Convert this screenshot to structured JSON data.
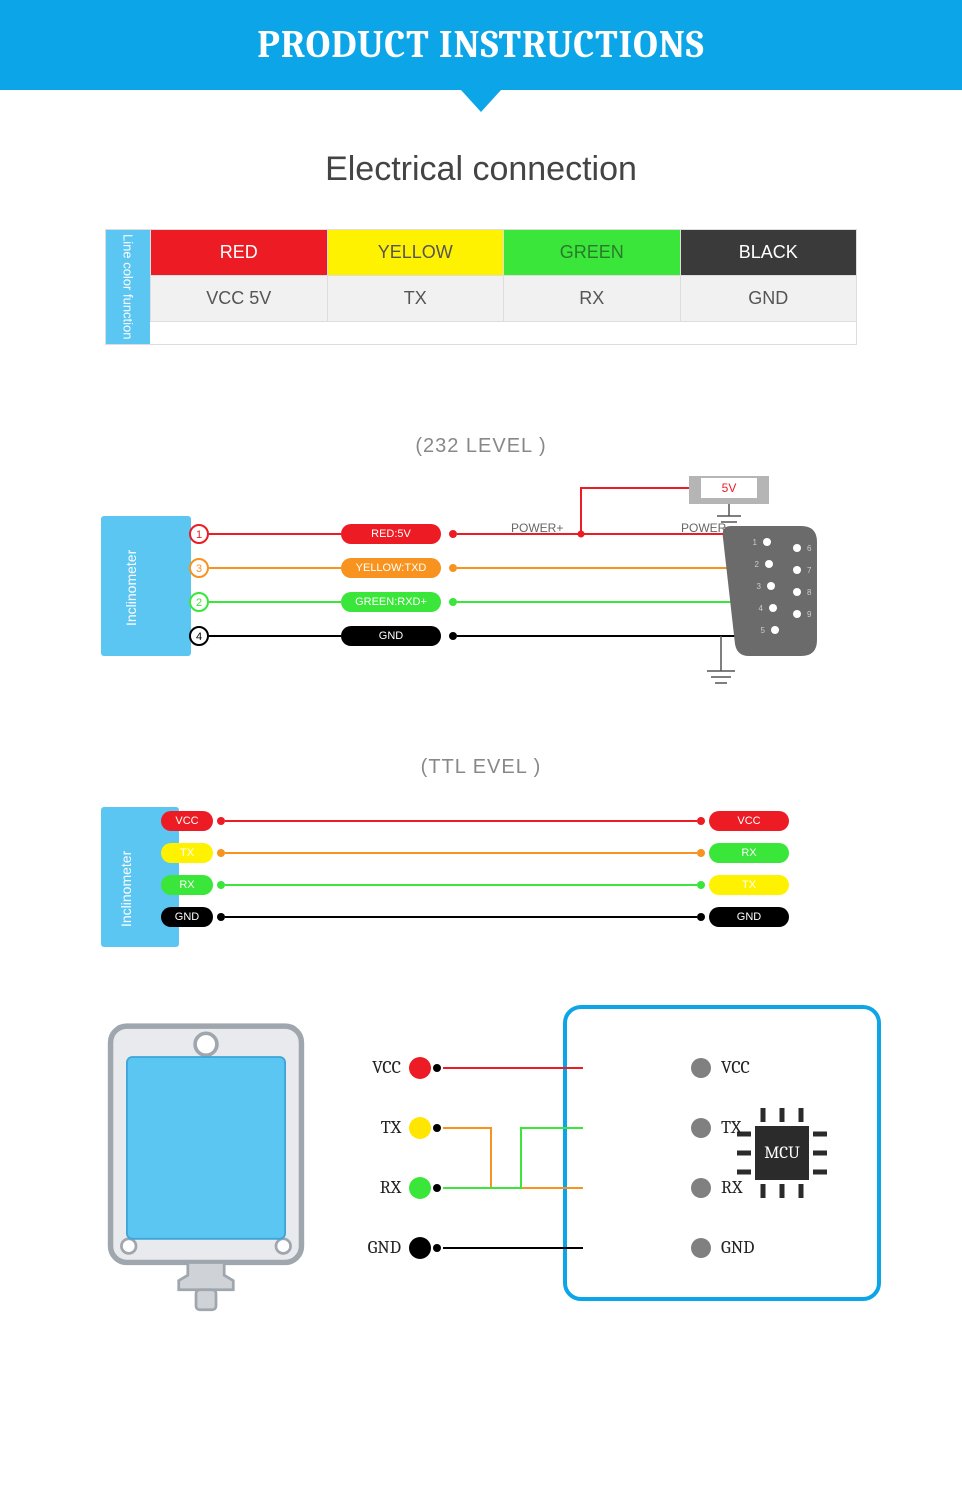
{
  "banner": {
    "title": "PRODUCT INSTRUCTIONS",
    "bg": "#0ca6e8"
  },
  "section": {
    "title": "Electrical connection"
  },
  "colorTable": {
    "label": "Line color function",
    "label_bg": "#5bc6f2",
    "cols": [
      {
        "name": "RED",
        "bg": "#ed1c24",
        "fg": "#ffffff",
        "func": "VCC 5V"
      },
      {
        "name": "YELLOW",
        "bg": "#fff200",
        "fg": "#555555",
        "func": "TX"
      },
      {
        "name": "GREEN",
        "bg": "#39e639",
        "fg": "#2b7a2b",
        "func": "RX"
      },
      {
        "name": "BLACK",
        "bg": "#3a3a3a",
        "fg": "#ffffff",
        "func": "GND"
      }
    ],
    "func_bg": "#f1f1f1",
    "func_fg": "#555555"
  },
  "diagram232": {
    "title": "(232 LEVEL )",
    "module_label": "Inclinometer",
    "module_bg": "#5bc6f2",
    "power_box": {
      "label": "POWER",
      "value": "5V",
      "bg": "#b5b5b5",
      "value_color": "#ed1c24"
    },
    "connector_label": "POWER",
    "wires": [
      {
        "num": "1",
        "color": "#ed1c24",
        "pill": "RED:5V",
        "extra": "POWER+"
      },
      {
        "num": "3",
        "color": "#f7931e",
        "pill": "YELLOW:TXD",
        "extra": ""
      },
      {
        "num": "2",
        "color": "#39e639",
        "pill": "GREEN:RXD+",
        "extra": ""
      },
      {
        "num": "4",
        "color": "#000000",
        "pill": "GND",
        "extra": ""
      }
    ],
    "db9_pins": [
      "1",
      "2",
      "3",
      "4",
      "5",
      "6",
      "7",
      "8",
      "9"
    ]
  },
  "diagramTTL": {
    "title": "(TTL  EVEL )",
    "module_label": "Inclinometer",
    "module_bg": "#5bc6f2",
    "lines": [
      {
        "left": "VCC",
        "left_bg": "#ed1c24",
        "left_fg": "#ffffff",
        "wire": "#ed1c24",
        "right": "VCC",
        "right_bg": "#ed1c24"
      },
      {
        "left": "TX",
        "left_bg": "#fff200",
        "left_fg": "#333333",
        "wire": "#f7931e",
        "right": "RX",
        "right_bg": "#39e639"
      },
      {
        "left": "RX",
        "left_bg": "#39e639",
        "left_fg": "#333333",
        "wire": "#39e639",
        "right": "TX",
        "right_bg": "#fff200"
      },
      {
        "left": "GND",
        "left_bg": "#000000",
        "left_fg": "#ffffff",
        "wire": "#000000",
        "right": "GND",
        "right_bg": "#000000"
      }
    ]
  },
  "mcuDiagram": {
    "device_fill": "#5bc6f2",
    "device_frame": "#9fa6ad",
    "mcu_label": "MCU",
    "mcu_border": "#0ca6e8",
    "pins": [
      {
        "label": "VCC",
        "dot": "#ed1c24",
        "right": "VCC"
      },
      {
        "label": "TX",
        "dot": "#ffe600",
        "right": "TX"
      },
      {
        "label": "RX",
        "dot": "#39e639",
        "right": "RX"
      },
      {
        "label": "GND",
        "dot": "#000000",
        "right": "GND"
      }
    ],
    "wire_colors": {
      "vcc": "#ed1c24",
      "tx_cross": "#f7931e",
      "rx_cross": "#39e639",
      "gnd": "#000000"
    }
  }
}
